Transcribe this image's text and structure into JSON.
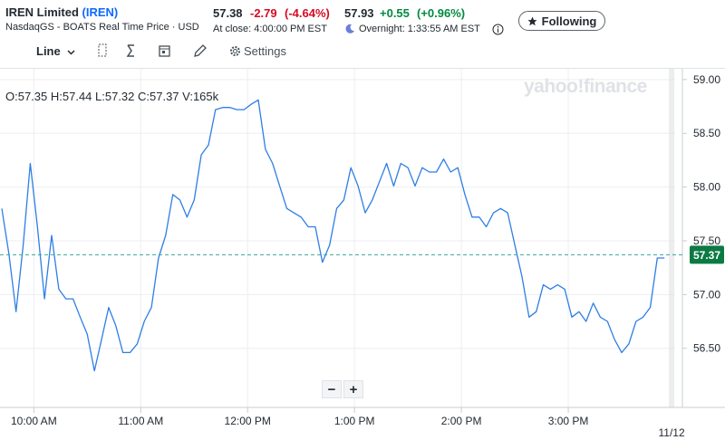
{
  "header": {
    "name": "IREN Limited",
    "symbol": "(IREN)",
    "exchange": "NasdaqGS - BOATS Real Time Price · USD",
    "close_price": "57.38",
    "close_change": "-2.79",
    "close_change_pct": "(-4.64%)",
    "close_time": "At close: 4:00:00 PM EST",
    "overnight_price": "57.93",
    "overnight_change": "+0.55",
    "overnight_change_pct": "(+0.96%)",
    "overnight_time": "Overnight: 1:33:55 AM EST",
    "follow_button": "Following"
  },
  "toolbar": {
    "chart_type": "Line",
    "settings": "Settings"
  },
  "ohlc": "O:57.35 H:57.44 L:57.32 C:57.37 V:165k",
  "watermark": "yahoo!finance",
  "zoom": {
    "out": "−",
    "in": "+"
  },
  "chart_data": {
    "type": "line",
    "color": "#2f7ee4",
    "grid": true,
    "x": [
      582,
      586,
      590,
      594,
      598,
      602,
      606,
      610,
      614,
      618,
      622,
      626,
      630,
      634,
      638,
      642,
      646,
      650,
      654,
      658,
      662,
      666,
      670,
      674,
      678,
      682,
      686,
      690,
      694,
      698,
      702,
      706,
      710,
      714,
      718,
      722,
      726,
      730,
      734,
      738,
      742,
      746,
      750,
      754,
      758,
      762,
      766,
      770,
      774,
      778,
      782,
      786,
      790,
      794,
      798,
      802,
      806,
      810,
      814,
      818,
      822,
      826,
      830,
      834,
      838,
      842,
      846,
      850,
      854,
      858,
      862,
      866,
      870,
      874,
      878,
      882,
      886,
      890,
      894,
      898,
      902,
      906,
      910,
      914,
      918,
      922,
      926,
      930,
      934,
      938,
      942,
      946,
      950,
      954
    ],
    "values": [
      57.8,
      57.38,
      56.84,
      57.46,
      58.22,
      57.63,
      56.96,
      57.55,
      57.05,
      56.96,
      56.96,
      56.79,
      56.63,
      56.29,
      56.58,
      56.88,
      56.71,
      56.46,
      56.46,
      56.54,
      56.75,
      56.88,
      57.34,
      57.55,
      57.93,
      57.88,
      57.72,
      57.88,
      58.3,
      58.39,
      58.72,
      58.74,
      58.74,
      58.72,
      58.72,
      58.77,
      58.81,
      58.35,
      58.22,
      58.01,
      57.8,
      57.76,
      57.72,
      57.63,
      57.63,
      57.3,
      57.46,
      57.8,
      57.88,
      58.18,
      58.01,
      57.76,
      57.88,
      58.05,
      58.22,
      58.01,
      58.22,
      58.18,
      58.01,
      58.18,
      58.14,
      58.14,
      58.26,
      58.14,
      58.18,
      57.93,
      57.72,
      57.72,
      57.63,
      57.76,
      57.8,
      57.76,
      57.46,
      57.17,
      56.79,
      56.84,
      57.09,
      57.05,
      57.09,
      57.05,
      56.79,
      56.84,
      56.75,
      56.92,
      56.79,
      56.75,
      56.58,
      56.46,
      56.54,
      56.75,
      56.79,
      56.88,
      57.34,
      57.34
    ],
    "xlim": [
      581,
      960
    ],
    "ylim": [
      55.95,
      59.1
    ],
    "xticks": [
      {
        "value": 600,
        "label": "10:00 AM"
      },
      {
        "value": 660,
        "label": "11:00 AM"
      },
      {
        "value": 720,
        "label": "12:00 PM"
      },
      {
        "value": 780,
        "label": "1:00 PM"
      },
      {
        "value": 840,
        "label": "2:00 PM"
      },
      {
        "value": 900,
        "label": "3:00 PM"
      }
    ],
    "date_marker": {
      "value": 958,
      "label": "11/12"
    },
    "yticks": [
      {
        "value": 56.5,
        "label": "56.50"
      },
      {
        "value": 57,
        "label": "57.00"
      },
      {
        "value": 57.5,
        "label": "57.50"
      },
      {
        "value": 58,
        "label": "58.00"
      },
      {
        "value": 58.5,
        "label": "58.50"
      },
      {
        "value": 59,
        "label": "59.00"
      }
    ],
    "current_price": 57.37,
    "current_price_color": "#0c7a43"
  }
}
